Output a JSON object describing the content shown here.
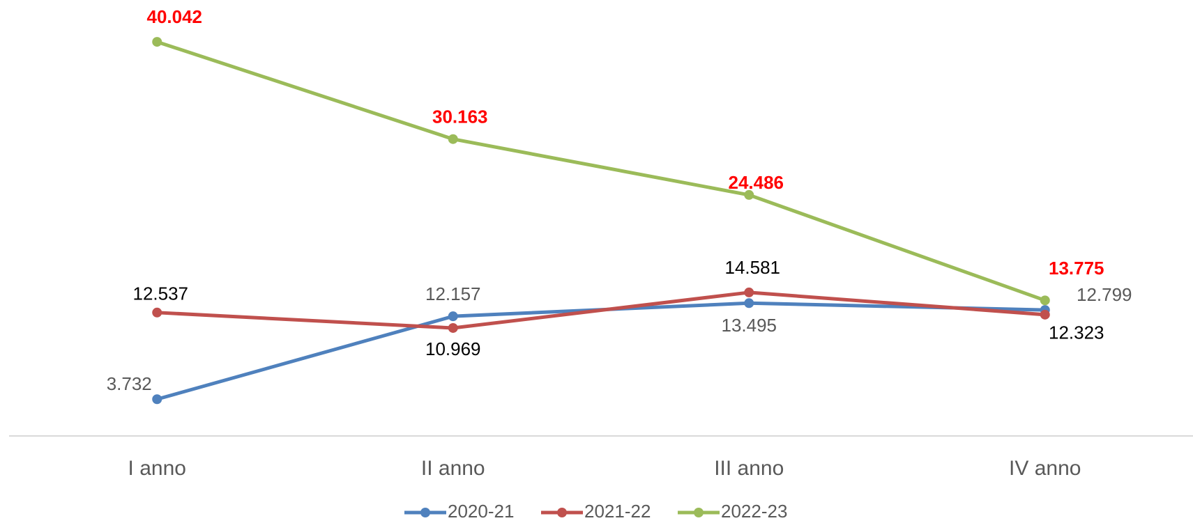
{
  "chart_data": {
    "type": "line",
    "categories": [
      "I anno",
      "II anno",
      "III anno",
      "IV anno"
    ],
    "series": [
      {
        "name": "2020-21",
        "color": "#4f81bd",
        "label_color": "#595959",
        "label_bold": false,
        "values": [
          3732,
          12157,
          13495,
          12799
        ],
        "value_labels": [
          "3.732",
          "12.157",
          "13.495",
          "12.799"
        ]
      },
      {
        "name": "2021-22",
        "color": "#c0504d",
        "label_color": "#000000",
        "label_bold": false,
        "values": [
          12537,
          10969,
          14581,
          12323
        ],
        "value_labels": [
          "12.537",
          "10.969",
          "14.581",
          "12.323"
        ]
      },
      {
        "name": "2022-23",
        "color": "#9bbb59",
        "label_color": "#ff0000",
        "label_bold": true,
        "values": [
          40042,
          30163,
          24486,
          13775
        ],
        "value_labels": [
          "40.042",
          "30.163",
          "24.486",
          "13.775"
        ]
      }
    ],
    "ylim": [
      0,
      45000
    ],
    "grid": false,
    "legend": "bottom"
  }
}
